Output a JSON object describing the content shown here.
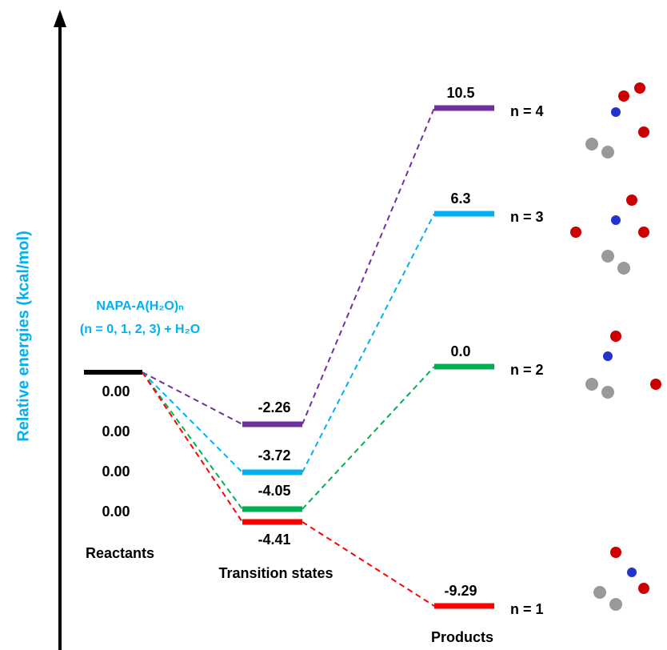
{
  "axis_label": "Relative energies (kcal/mol)",
  "reactant_label": {
    "line1": "NAPA-A(H₂O)ₙ",
    "line2": "(n = 0, 1, 2, 3) + H₂O"
  },
  "reactant_energies": [
    "0.00",
    "0.00",
    "0.00",
    "0.00"
  ],
  "stages": [
    "Reactants",
    "Transition states",
    "Products"
  ],
  "pathways": [
    {
      "color": "#7030a0",
      "ts": "-2.26",
      "product": "10.5",
      "label": "n = 4"
    },
    {
      "color": "#00b0f0",
      "ts": "-3.72",
      "product": "6.3",
      "label": "n = 3"
    },
    {
      "color": "#00b050",
      "ts": "-4.05",
      "product": "0.0",
      "label": "n = 2"
    },
    {
      "color": "#ff0000",
      "ts": "-4.41",
      "product": "-9.29",
      "label": "n = 1"
    }
  ]
}
